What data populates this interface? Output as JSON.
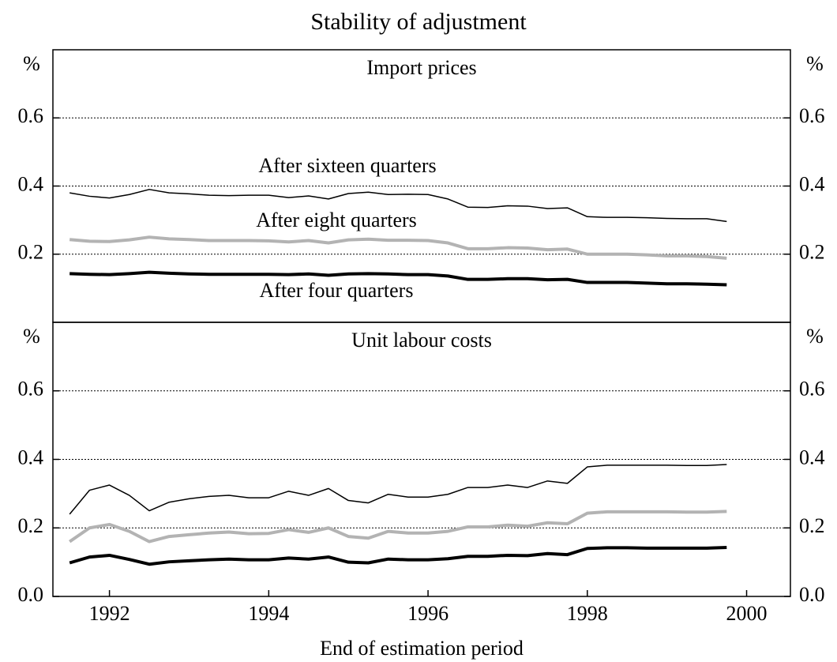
{
  "title": "Stability of adjustment",
  "xlabel": "End of estimation period",
  "chart_data": [
    {
      "type": "line",
      "title": "Import prices",
      "y_unit": "%",
      "x": [
        1991.5,
        1991.75,
        1992,
        1992.25,
        1992.5,
        1992.75,
        1993,
        1993.25,
        1993.5,
        1993.75,
        1994,
        1994.25,
        1994.5,
        1994.75,
        1995,
        1995.25,
        1995.5,
        1995.75,
        1996,
        1996.25,
        1996.5,
        1996.75,
        1997,
        1997.25,
        1997.5,
        1997.75,
        1998,
        1998.25,
        1998.5,
        1998.75,
        1999,
        1999.25,
        1999.5,
        1999.75
      ],
      "xlim": [
        1991.29,
        2000.55
      ],
      "ylim": [
        0,
        0.8
      ],
      "yticks": [
        0.2,
        0.4,
        0.6
      ],
      "grid": true,
      "series": [
        {
          "name": "After sixteen quarters",
          "color": "#000000",
          "values": [
            0.38,
            0.37,
            0.365,
            0.375,
            0.39,
            0.38,
            0.377,
            0.373,
            0.372,
            0.373,
            0.373,
            0.366,
            0.371,
            0.362,
            0.378,
            0.382,
            0.375,
            0.376,
            0.375,
            0.362,
            0.338,
            0.337,
            0.342,
            0.341,
            0.334,
            0.336,
            0.31,
            0.308,
            0.308,
            0.307,
            0.305,
            0.304,
            0.304,
            0.296
          ]
        },
        {
          "name": "After eight quarters",
          "color": "#b3b3b3",
          "values": [
            0.243,
            0.238,
            0.237,
            0.242,
            0.25,
            0.245,
            0.243,
            0.24,
            0.24,
            0.24,
            0.239,
            0.236,
            0.24,
            0.233,
            0.242,
            0.244,
            0.241,
            0.241,
            0.24,
            0.233,
            0.216,
            0.216,
            0.219,
            0.218,
            0.213,
            0.215,
            0.2,
            0.2,
            0.2,
            0.198,
            0.195,
            0.195,
            0.193,
            0.188
          ]
        },
        {
          "name": "After four quarters",
          "color": "#000000",
          "values": [
            0.143,
            0.141,
            0.14,
            0.143,
            0.147,
            0.144,
            0.142,
            0.141,
            0.141,
            0.141,
            0.141,
            0.14,
            0.142,
            0.138,
            0.142,
            0.143,
            0.142,
            0.14,
            0.14,
            0.136,
            0.126,
            0.126,
            0.128,
            0.128,
            0.125,
            0.126,
            0.117,
            0.117,
            0.117,
            0.115,
            0.113,
            0.113,
            0.112,
            0.11
          ]
        }
      ]
    },
    {
      "type": "line",
      "title": "Unit labour costs",
      "y_unit": "%",
      "x": [
        1991.5,
        1991.75,
        1992,
        1992.25,
        1992.5,
        1992.75,
        1993,
        1993.25,
        1993.5,
        1993.75,
        1994,
        1994.25,
        1994.5,
        1994.75,
        1995,
        1995.25,
        1995.5,
        1995.75,
        1996,
        1996.25,
        1996.5,
        1996.75,
        1997,
        1997.25,
        1997.5,
        1997.75,
        1998,
        1998.25,
        1998.5,
        1998.75,
        1999,
        1999.25,
        1999.5,
        1999.75
      ],
      "xlim": [
        1991.29,
        2000.55
      ],
      "xticks": [
        1992,
        1994,
        1996,
        1998,
        2000
      ],
      "ylim": [
        0,
        0.8
      ],
      "yticks": [
        {
          "value": 0,
          "label": "0.0"
        },
        0.2,
        0.4,
        0.6
      ],
      "grid": true,
      "series": [
        {
          "color": "#000000",
          "values": [
            0.24,
            0.31,
            0.325,
            0.295,
            0.25,
            0.275,
            0.285,
            0.292,
            0.295,
            0.288,
            0.288,
            0.307,
            0.295,
            0.315,
            0.28,
            0.273,
            0.298,
            0.29,
            0.29,
            0.298,
            0.318,
            0.318,
            0.325,
            0.318,
            0.337,
            0.33,
            0.378,
            0.383,
            0.383,
            0.383,
            0.383,
            0.382,
            0.382,
            0.385
          ]
        },
        {
          "color": "#b3b3b3",
          "values": [
            0.16,
            0.2,
            0.21,
            0.19,
            0.16,
            0.175,
            0.18,
            0.185,
            0.188,
            0.183,
            0.184,
            0.195,
            0.187,
            0.2,
            0.175,
            0.17,
            0.19,
            0.185,
            0.185,
            0.19,
            0.203,
            0.203,
            0.208,
            0.205,
            0.215,
            0.212,
            0.243,
            0.247,
            0.247,
            0.247,
            0.247,
            0.246,
            0.246,
            0.248
          ]
        },
        {
          "color": "#000000",
          "values": [
            0.098,
            0.115,
            0.12,
            0.108,
            0.094,
            0.101,
            0.104,
            0.107,
            0.109,
            0.107,
            0.107,
            0.112,
            0.109,
            0.115,
            0.1,
            0.098,
            0.109,
            0.107,
            0.107,
            0.11,
            0.117,
            0.117,
            0.12,
            0.119,
            0.125,
            0.122,
            0.14,
            0.142,
            0.142,
            0.141,
            0.141,
            0.141,
            0.141,
            0.143
          ]
        }
      ]
    }
  ]
}
